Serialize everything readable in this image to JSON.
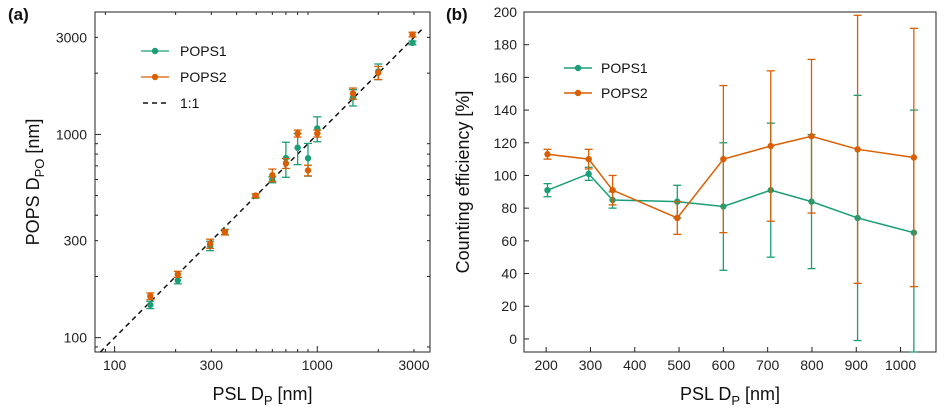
{
  "colors": {
    "pops1": "#1b9e77",
    "pops2": "#d95f02",
    "ref": "#111111"
  },
  "chart_data": [
    {
      "panel": "(a)",
      "type": "scatter",
      "xscale": "log",
      "yscale": "log",
      "xlabel": {
        "main": "PSL D",
        "sub": "P",
        "tail": " [nm]"
      },
      "ylabel": {
        "main": "POPS D",
        "sub": "PO",
        "tail": " [nm]"
      },
      "xlim": [
        80,
        3600
      ],
      "ylim": [
        85,
        4000
      ],
      "xticks": [
        100,
        300,
        1000,
        3000
      ],
      "yticks": [
        100,
        300,
        1000,
        3000
      ],
      "xtick_labels": [
        "100",
        "300",
        "1000",
        "3000"
      ],
      "ytick_labels": [
        "100",
        "300",
        "1000",
        "3000"
      ],
      "legend_position": "top-left",
      "reference_line": {
        "name": "1:1",
        "style": "dashed"
      },
      "series": [
        {
          "name": "POPS1",
          "points": [
            {
              "x": 150,
              "y": 145,
              "err": 6
            },
            {
              "x": 205,
              "y": 191,
              "err": 7
            },
            {
              "x": 296,
              "y": 283,
              "err": 15
            },
            {
              "x": 350,
              "y": 331,
              "err": 10
            },
            {
              "x": 496,
              "y": 498,
              "err": 12
            },
            {
              "x": 600,
              "y": 598,
              "err": 20
            },
            {
              "x": 700,
              "y": 765,
              "err": 150
            },
            {
              "x": 800,
              "y": 860,
              "err": 150
            },
            {
              "x": 900,
              "y": 763,
              "err": 140
            },
            {
              "x": 1000,
              "y": 1070,
              "err": 150
            },
            {
              "x": 1500,
              "y": 1520,
              "err": 140
            },
            {
              "x": 2000,
              "y": 2040,
              "err": 180
            },
            {
              "x": 2950,
              "y": 2820,
              "err": 60
            }
          ]
        },
        {
          "name": "POPS2",
          "points": [
            {
              "x": 150,
              "y": 160,
              "err": 6
            },
            {
              "x": 205,
              "y": 205,
              "err": 7
            },
            {
              "x": 296,
              "y": 290,
              "err": 15
            },
            {
              "x": 350,
              "y": 330,
              "err": 10
            },
            {
              "x": 496,
              "y": 500,
              "err": 10
            },
            {
              "x": 600,
              "y": 630,
              "err": 45
            },
            {
              "x": 700,
              "y": 720,
              "err": 40
            },
            {
              "x": 800,
              "y": 1010,
              "err": 40
            },
            {
              "x": 900,
              "y": 665,
              "err": 40
            },
            {
              "x": 1000,
              "y": 1010,
              "err": 40
            },
            {
              "x": 1500,
              "y": 1590,
              "err": 100
            },
            {
              "x": 2000,
              "y": 2010,
              "err": 150
            },
            {
              "x": 2950,
              "y": 3100,
              "err": 80
            }
          ]
        }
      ]
    },
    {
      "panel": "(b)",
      "type": "line",
      "xlabel": {
        "main": "PSL D",
        "sub": "P",
        "tail": " [nm]"
      },
      "ylabel": {
        "main": "Counting efficiency [%]"
      },
      "xlim": [
        150,
        1080
      ],
      "ylim": [
        -8,
        200
      ],
      "xticks": [
        200,
        300,
        400,
        500,
        600,
        700,
        800,
        900,
        1000
      ],
      "yticks": [
        0,
        20,
        40,
        60,
        80,
        100,
        120,
        140,
        160,
        180,
        200
      ],
      "xtick_labels": [
        "200",
        "300",
        "400",
        "500",
        "600",
        "700",
        "800",
        "900",
        "1000"
      ],
      "ytick_labels": [
        "0",
        "20",
        "40",
        "60",
        "80",
        "100",
        "120",
        "140",
        "160",
        "180",
        "200"
      ],
      "legend_position": "top-left",
      "series": [
        {
          "name": "POPS1",
          "points": [
            {
              "x": 203,
              "y": 91,
              "err": 4
            },
            {
              "x": 296,
              "y": 101,
              "err": 4
            },
            {
              "x": 350,
              "y": 85,
              "err": 5
            },
            {
              "x": 496,
              "y": 84,
              "err": 10
            },
            {
              "x": 600,
              "y": 81,
              "err": 39
            },
            {
              "x": 707,
              "y": 91,
              "err": 41
            },
            {
              "x": 799,
              "y": 84,
              "err": 41
            },
            {
              "x": 903,
              "y": 74,
              "err": 75
            },
            {
              "x": 1030,
              "y": 65,
              "err": 75
            }
          ]
        },
        {
          "name": "POPS2",
          "points": [
            {
              "x": 203,
              "y": 113,
              "err": 3
            },
            {
              "x": 296,
              "y": 110,
              "err": 6
            },
            {
              "x": 350,
              "y": 91,
              "err": 9
            },
            {
              "x": 496,
              "y": 74,
              "err": 10
            },
            {
              "x": 600,
              "y": 110,
              "err": 45
            },
            {
              "x": 707,
              "y": 118,
              "err": 46
            },
            {
              "x": 799,
              "y": 124,
              "err": 47
            },
            {
              "x": 903,
              "y": 116,
              "err": 82
            },
            {
              "x": 1030,
              "y": 111,
              "err": 79
            }
          ]
        }
      ]
    }
  ]
}
